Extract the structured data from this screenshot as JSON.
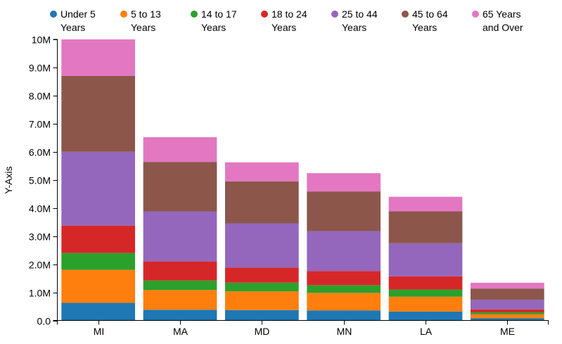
{
  "chart_data": {
    "type": "bar",
    "stacked": true,
    "title": "",
    "xlabel": "",
    "ylabel": "Y-Axis",
    "ylim": [
      0,
      10000000
    ],
    "y_ticks": [
      "0.0",
      "1.0M",
      "2.0M",
      "3.0M",
      "4.0M",
      "5.0M",
      "6.0M",
      "7.0M",
      "8.0M",
      "9.0M",
      "10M"
    ],
    "grid": false,
    "legend_position": "top",
    "categories": [
      "MI",
      "MA",
      "MD",
      "MN",
      "LA",
      "ME"
    ],
    "series": [
      {
        "name": "Under 5 Years",
        "color": "#1f77b4",
        "values": [
          625000,
          380000,
          370000,
          355000,
          315000,
          75000
        ]
      },
      {
        "name": "5 to 13 Years",
        "color": "#ff7f0e",
        "values": [
          1175000,
          700000,
          665000,
          625000,
          530000,
          140000
        ]
      },
      {
        "name": "14 to 17 Years",
        "color": "#2ca02c",
        "values": [
          600000,
          340000,
          310000,
          275000,
          255000,
          70000
        ]
      },
      {
        "name": "18 to 24 Years",
        "color": "#d62728",
        "values": [
          975000,
          680000,
          535000,
          500000,
          470000,
          110000
        ]
      },
      {
        "name": "25 to 44 Years",
        "color": "#9467bd",
        "values": [
          2625000,
          1780000,
          1575000,
          1425000,
          1175000,
          340000
        ]
      },
      {
        "name": "45 to 64 Years",
        "color": "#8c564b",
        "values": [
          2700000,
          1760000,
          1490000,
          1410000,
          1135000,
          400000
        ]
      },
      {
        "name": "65 Years and Over",
        "color": "#e377c2",
        "values": [
          1300000,
          880000,
          680000,
          650000,
          520000,
          205000
        ]
      }
    ]
  }
}
